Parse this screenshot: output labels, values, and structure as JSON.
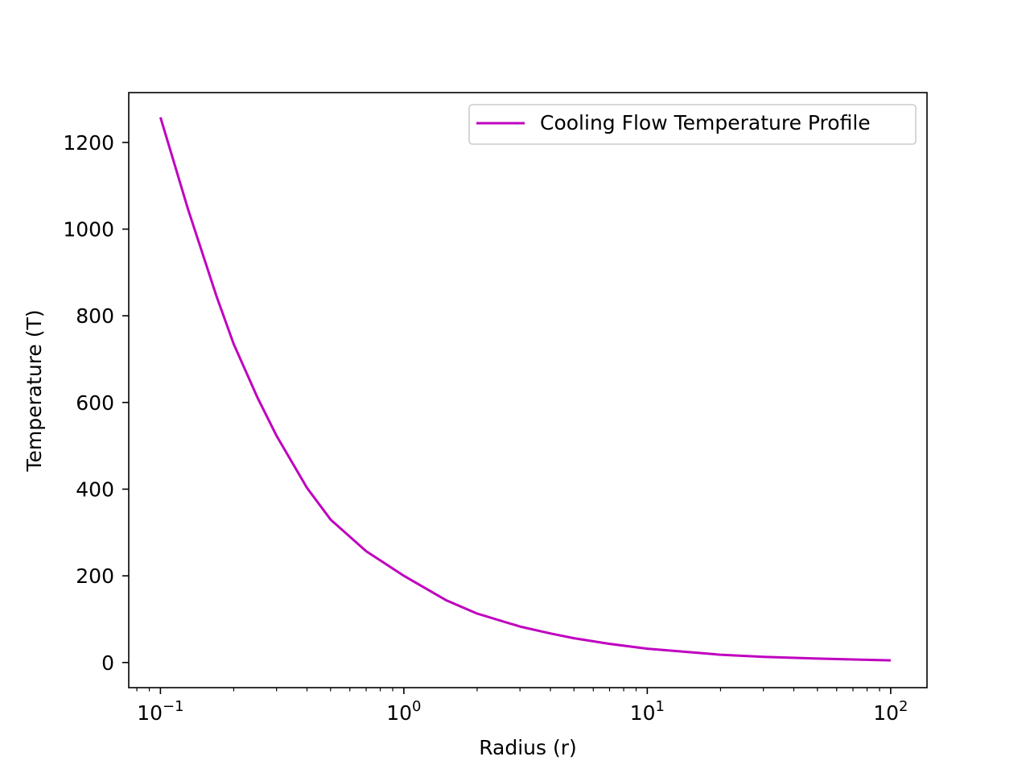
{
  "chart_data": {
    "type": "line",
    "title": "",
    "xlabel": "Radius (r)",
    "ylabel": "Temperature (T)",
    "xscale": "log",
    "xlim": [
      0.0741,
      141
    ],
    "ylim": [
      -58,
      1315
    ],
    "x_ticks": [
      {
        "value": 0.1,
        "base": "10",
        "exp": "−1"
      },
      {
        "value": 1,
        "base": "10",
        "exp": "0"
      },
      {
        "value": 10,
        "base": "10",
        "exp": "1"
      },
      {
        "value": 100,
        "base": "10",
        "exp": "2"
      }
    ],
    "y_ticks": [
      0,
      200,
      400,
      600,
      800,
      1000,
      1200
    ],
    "y_tick_labels": [
      "0",
      "200",
      "400",
      "600",
      "800",
      "1000",
      "1200"
    ],
    "grid": false,
    "legend_position": "upper-right",
    "series": [
      {
        "name": "Cooling Flow Temperature Profile",
        "color": "#bf00bf",
        "x": [
          0.1,
          0.13,
          0.17,
          0.2,
          0.25,
          0.3,
          0.4,
          0.5,
          0.7,
          1,
          1.5,
          2,
          3,
          4,
          5,
          7,
          10,
          20,
          30,
          50,
          70,
          100
        ],
        "y": [
          1258,
          1045,
          845,
          735,
          612,
          523,
          403,
          330,
          257,
          200,
          143,
          113,
          83,
          67,
          56,
          43,
          32,
          18,
          13,
          9,
          7,
          5
        ]
      }
    ]
  }
}
